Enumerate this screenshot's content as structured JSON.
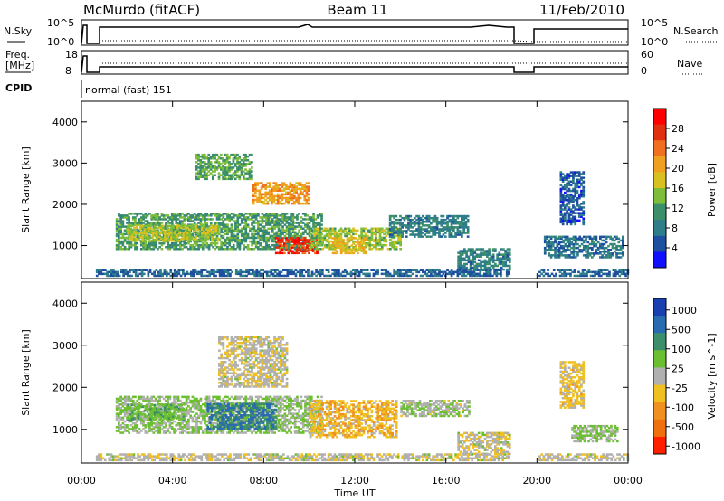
{
  "header": {
    "station": "McMurdo (fitACF)",
    "beam": "Beam 11",
    "date": "11/Feb/2010"
  },
  "panels": {
    "nsky_label": "N.Sky",
    "nsearch_label": "N.Search",
    "nsky_ticks": [
      "10^5",
      "10^0"
    ],
    "freq_label_1": "Freq.",
    "freq_label_2": "[MHz]",
    "freq_ticks": [
      "18",
      "8"
    ],
    "nave_label": "Nave",
    "nave_ticks": [
      "60",
      "0"
    ],
    "cpid_label": "CPID",
    "cpid_value": "normal (fast) 151"
  },
  "colors": {
    "power_scale": [
      "#1010ff",
      "#1f4f9f",
      "#2e7d8a",
      "#3c8f6a",
      "#7dbd3a",
      "#d8c020",
      "#f0a020",
      "#f07020",
      "#e03010",
      "#ff0000"
    ],
    "velocity_scale": [
      "#1a3fb0",
      "#2a6ab0",
      "#3c8f6a",
      "#6cc030",
      "#b0b0b0",
      "#f0c020",
      "#f09020",
      "#f07010",
      "#ff2000"
    ]
  },
  "chart_data": [
    {
      "type": "heatmap",
      "name": "power",
      "ylabel": "Slant Range [km]",
      "ylim": [
        200,
        4500
      ],
      "yticks": [
        "1000",
        "2000",
        "3000",
        "4000"
      ],
      "xticks": [
        "00:00",
        "04:00",
        "08:00",
        "12:00",
        "16:00",
        "20:00",
        "00:00"
      ],
      "xlim_hours": [
        0,
        24
      ],
      "colorbar_label": "Power [dB]",
      "colorbar_ticks": [
        "4",
        "8",
        "12",
        "16",
        "20",
        "24",
        "28"
      ],
      "colorbar_range": [
        0,
        30
      ],
      "regions": [
        {
          "t0": 1.5,
          "t1": 10.5,
          "r0": 900,
          "r1": 1800,
          "v": 11
        },
        {
          "t0": 2.0,
          "t1": 6.0,
          "r0": 1100,
          "r1": 1500,
          "v": 15
        },
        {
          "t0": 8.5,
          "t1": 10.3,
          "r0": 800,
          "r1": 1200,
          "v": 26
        },
        {
          "t0": 7.5,
          "t1": 10.0,
          "r0": 2000,
          "r1": 2500,
          "v": 20
        },
        {
          "t0": 5.0,
          "t1": 7.5,
          "r0": 2600,
          "r1": 3200,
          "v": 12
        },
        {
          "t0": 10.0,
          "t1": 14.0,
          "r0": 900,
          "r1": 1400,
          "v": 14
        },
        {
          "t0": 11.0,
          "t1": 12.5,
          "r0": 800,
          "r1": 1200,
          "v": 18
        },
        {
          "t0": 13.5,
          "t1": 17.0,
          "r0": 1200,
          "r1": 1700,
          "v": 8
        },
        {
          "t0": 16.5,
          "t1": 18.8,
          "r0": 400,
          "r1": 900,
          "v": 8
        },
        {
          "t0": 20.3,
          "t1": 23.8,
          "r0": 700,
          "r1": 1200,
          "v": 7
        },
        {
          "t0": 21.0,
          "t1": 22.0,
          "r0": 1500,
          "r1": 2800,
          "v": 5
        },
        {
          "t0": 0.0,
          "t1": 24.0,
          "r0": 250,
          "r1": 400,
          "v": 6
        }
      ]
    },
    {
      "type": "heatmap",
      "name": "velocity",
      "ylabel": "Slant Range [km]",
      "ylim": [
        200,
        4500
      ],
      "yticks": [
        "1000",
        "2000",
        "3000",
        "4000"
      ],
      "xticks": [
        "00:00",
        "04:00",
        "08:00",
        "12:00",
        "16:00",
        "20:00",
        "00:00"
      ],
      "xlim_hours": [
        0,
        24
      ],
      "xlabel": "Time UT",
      "colorbar_label": "Velocity [m s^-1]",
      "colorbar_ticks": [
        "1000",
        "500",
        "100",
        "25",
        "-25",
        "-100",
        "-500",
        "-1000"
      ],
      "colorbar_range": [
        -1200,
        1200
      ],
      "regions": [
        {
          "t0": 1.5,
          "t1": 10.5,
          "r0": 900,
          "r1": 1800,
          "v": 150
        },
        {
          "t0": 5.5,
          "t1": 8.5,
          "r0": 1000,
          "r1": 1600,
          "v": 700
        },
        {
          "t0": 2.0,
          "t1": 4.5,
          "r0": 1200,
          "r1": 1600,
          "v": 300
        },
        {
          "t0": 10.0,
          "t1": 13.8,
          "r0": 800,
          "r1": 1700,
          "v": -300
        },
        {
          "t0": 6.0,
          "t1": 9.0,
          "r0": 2000,
          "r1": 3200,
          "v": -60
        },
        {
          "t0": 14.0,
          "t1": 17.0,
          "r0": 1300,
          "r1": 1700,
          "v": 60
        },
        {
          "t0": 16.5,
          "t1": 18.8,
          "r0": 400,
          "r1": 900,
          "v": -60
        },
        {
          "t0": 21.5,
          "t1": 23.5,
          "r0": 700,
          "r1": 1100,
          "v": 150
        },
        {
          "t0": 21.0,
          "t1": 22.0,
          "r0": 1500,
          "r1": 2600,
          "v": -200
        },
        {
          "t0": 0.0,
          "t1": 24.0,
          "r0": 250,
          "r1": 400,
          "v": -40
        }
      ]
    }
  ]
}
